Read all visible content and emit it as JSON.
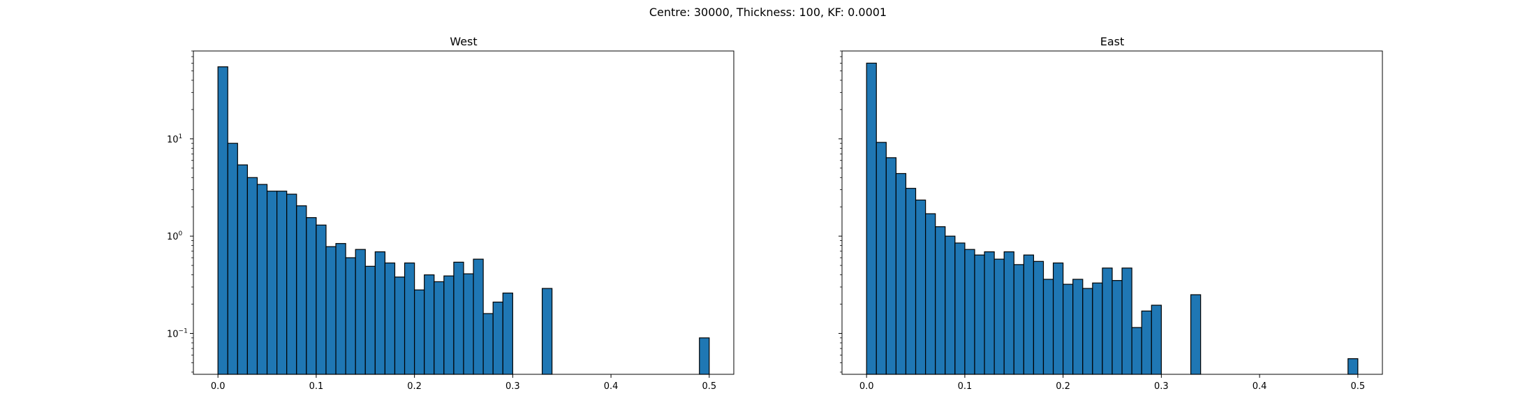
{
  "figure": {
    "suptitle": "Centre: 30000, Thickness: 100, KF: 0.0001"
  },
  "chart_data": [
    {
      "type": "bar",
      "title": "West",
      "xlabel": "",
      "ylabel": "",
      "yscale": "log",
      "xlim": [
        -0.025,
        0.525
      ],
      "ylim": [
        0.038,
        80
      ],
      "bin_width": 0.01,
      "xticks": [
        0.0,
        0.1,
        0.2,
        0.3,
        0.4,
        0.5
      ],
      "xtick_labels": [
        "0.0",
        "0.1",
        "0.2",
        "0.3",
        "0.4",
        "0.5"
      ],
      "ytick_labels": [
        "10−1",
        "100",
        "101"
      ],
      "bar_color": "#1f77b4",
      "edge_color": "#000000",
      "bins_left": [
        0.0,
        0.01,
        0.02,
        0.03,
        0.04,
        0.05,
        0.06,
        0.07,
        0.08,
        0.09,
        0.1,
        0.11,
        0.12,
        0.13,
        0.14,
        0.15,
        0.16,
        0.17,
        0.18,
        0.19,
        0.2,
        0.21,
        0.22,
        0.23,
        0.24,
        0.25,
        0.26,
        0.27,
        0.28,
        0.29,
        0.33,
        0.49
      ],
      "values": [
        55.0,
        9.0,
        5.4,
        4.0,
        3.4,
        2.9,
        2.9,
        2.7,
        2.05,
        1.55,
        1.3,
        0.78,
        0.84,
        0.6,
        0.73,
        0.49,
        0.69,
        0.53,
        0.38,
        0.53,
        0.28,
        0.4,
        0.34,
        0.39,
        0.54,
        0.41,
        0.58,
        0.16,
        0.21,
        0.26,
        0.29,
        0.09
      ]
    },
    {
      "type": "bar",
      "title": "East",
      "xlabel": "",
      "ylabel": "",
      "yscale": "log",
      "xlim": [
        -0.025,
        0.525
      ],
      "ylim": [
        0.038,
        80
      ],
      "bin_width": 0.01,
      "xticks": [
        0.0,
        0.1,
        0.2,
        0.3,
        0.4,
        0.5
      ],
      "xtick_labels": [
        "0.0",
        "0.1",
        "0.2",
        "0.3",
        "0.4",
        "0.5"
      ],
      "ytick_labels": [],
      "bar_color": "#1f77b4",
      "edge_color": "#000000",
      "bins_left": [
        0.0,
        0.01,
        0.02,
        0.03,
        0.04,
        0.05,
        0.06,
        0.07,
        0.08,
        0.09,
        0.1,
        0.11,
        0.12,
        0.13,
        0.14,
        0.15,
        0.16,
        0.17,
        0.18,
        0.19,
        0.2,
        0.21,
        0.22,
        0.23,
        0.24,
        0.25,
        0.26,
        0.27,
        0.28,
        0.29,
        0.33,
        0.49
      ],
      "values": [
        60.0,
        9.2,
        6.4,
        4.4,
        3.1,
        2.35,
        1.7,
        1.25,
        1.0,
        0.85,
        0.73,
        0.64,
        0.69,
        0.58,
        0.69,
        0.51,
        0.64,
        0.55,
        0.36,
        0.53,
        0.32,
        0.36,
        0.29,
        0.33,
        0.47,
        0.35,
        0.47,
        0.115,
        0.17,
        0.195,
        0.25,
        0.055
      ]
    }
  ]
}
